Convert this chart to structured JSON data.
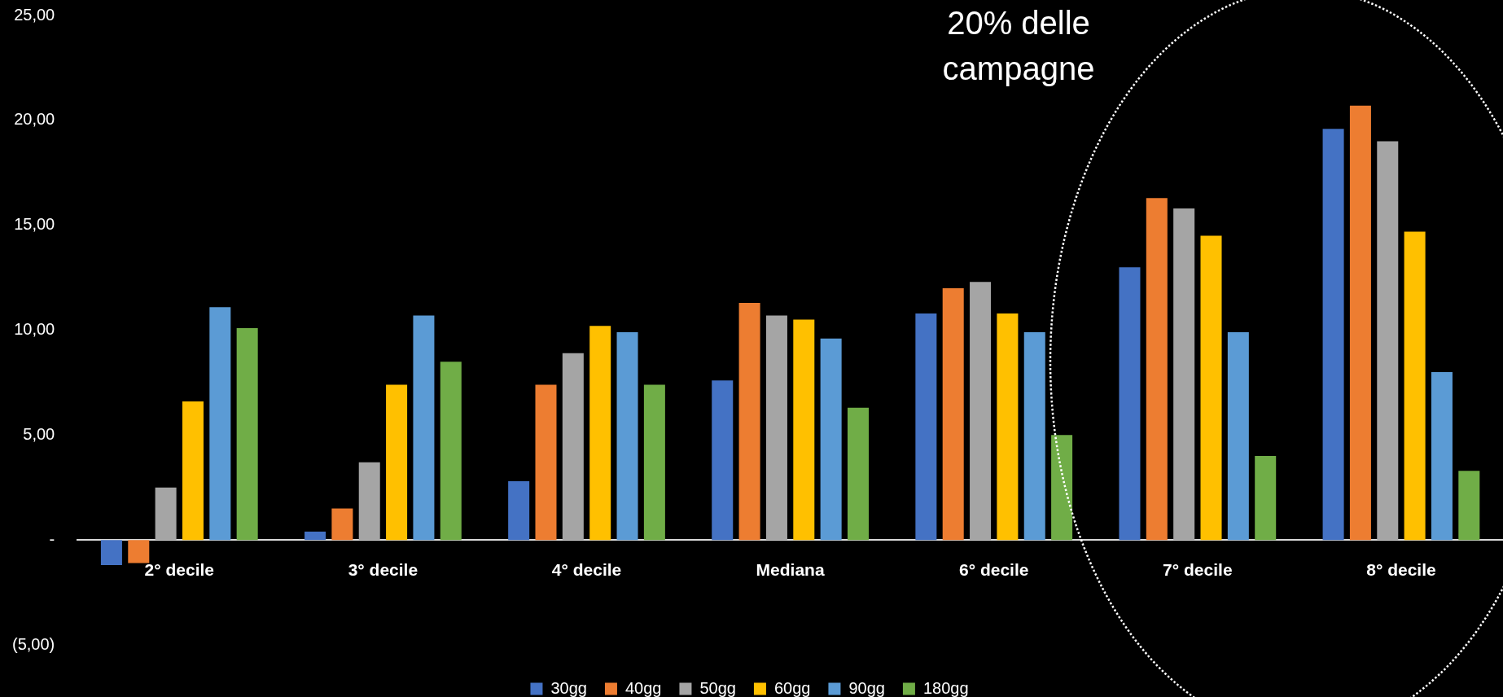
{
  "chart_data": {
    "type": "bar",
    "categories": [
      "2° decile",
      "3° decile",
      "4° decile",
      "Mediana",
      "6° decile",
      "7° decile",
      "8° decile"
    ],
    "series": [
      {
        "name": "30gg",
        "color": "#4472c4",
        "values": [
          -1.2,
          0.4,
          2.8,
          7.6,
          10.8,
          13.0,
          19.6
        ]
      },
      {
        "name": "40gg",
        "color": "#ed7d31",
        "values": [
          -1.1,
          1.5,
          7.4,
          11.3,
          12.0,
          16.3,
          20.7
        ]
      },
      {
        "name": "50gg",
        "color": "#a5a5a5",
        "values": [
          2.5,
          3.7,
          8.9,
          10.7,
          12.3,
          15.8,
          19.0
        ]
      },
      {
        "name": "60gg",
        "color": "#ffc000",
        "values": [
          6.6,
          7.4,
          10.2,
          10.5,
          10.8,
          14.5,
          14.7
        ]
      },
      {
        "name": "90gg",
        "color": "#5b9bd5",
        "values": [
          11.1,
          10.7,
          9.9,
          9.6,
          9.9,
          9.9,
          8.0
        ]
      },
      {
        "name": "180gg",
        "color": "#70ad47",
        "values": [
          10.1,
          8.5,
          7.4,
          6.3,
          5.0,
          4.0,
          3.3
        ]
      }
    ],
    "ylim": [
      -5,
      25
    ],
    "yticks": [
      {
        "value": -5,
        "label": "(5,00)"
      },
      {
        "value": 0,
        "label": "-"
      },
      {
        "value": 5,
        "label": "5,00"
      },
      {
        "value": 10,
        "label": "10,00"
      },
      {
        "value": 15,
        "label": "15,00"
      },
      {
        "value": 20,
        "label": "20,00"
      },
      {
        "value": 25,
        "label": "25,00"
      }
    ],
    "grid": false,
    "legend": "bottom",
    "annotations": [
      "20% delle campagne"
    ]
  }
}
